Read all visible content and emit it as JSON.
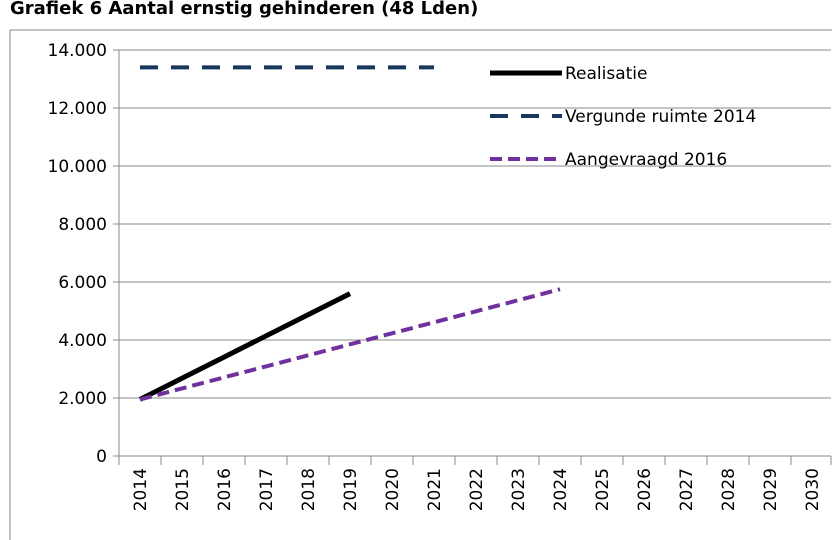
{
  "chart_data": {
    "type": "line",
    "title": "Grafiek 6 Aantal ernstig gehinderen (48 Lden)",
    "categories": [
      "2014",
      "2015",
      "2016",
      "2017",
      "2018",
      "2019",
      "2020",
      "2021",
      "2022",
      "2023",
      "2024",
      "2025",
      "2026",
      "2027",
      "2028",
      "2029",
      "2030"
    ],
    "series": [
      {
        "name": "Realisatie",
        "color": "#000000",
        "values": [
          1950,
          2680,
          3410,
          4140,
          4870,
          5600,
          null,
          null,
          null,
          null,
          null,
          null,
          null,
          null,
          null,
          null,
          null
        ]
      },
      {
        "name": "Vergunde ruimte 2014",
        "color": "#17375e",
        "values": [
          13400,
          13400,
          13400,
          13400,
          13400,
          13400,
          13400,
          13400,
          null,
          null,
          null,
          null,
          null,
          null,
          null,
          null,
          null
        ]
      },
      {
        "name": "Aangevraagd 2016",
        "color": "#7030a0",
        "values": [
          1950,
          2330,
          2710,
          3090,
          3470,
          3850,
          4230,
          4610,
          4990,
          5370,
          5750,
          null,
          null,
          null,
          null,
          null,
          null
        ]
      }
    ],
    "ylim": [
      0,
      14000
    ],
    "yticks": [
      0,
      {
        "value": 2000,
        "label": "2.000"
      },
      {
        "value": 4000,
        "label": "4.000"
      },
      {
        "value": 6000,
        "label": "6.000"
      },
      {
        "value": 8000,
        "label": "8.000"
      },
      {
        "value": 10000,
        "label": "10.000"
      },
      {
        "value": 12000,
        "label": "12.000"
      },
      {
        "value": 14000,
        "label": "14.000"
      }
    ],
    "grid": true
  }
}
